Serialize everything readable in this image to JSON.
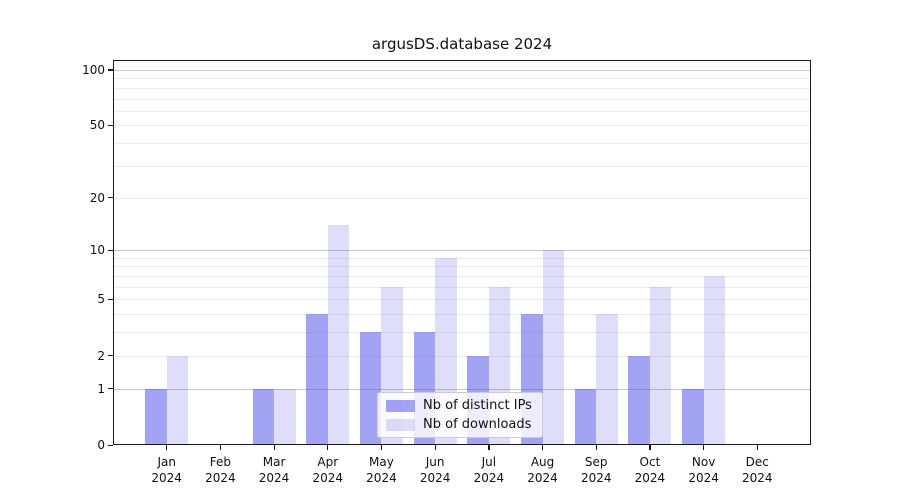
{
  "title": "argusDS.database 2024",
  "chart_data": {
    "type": "bar",
    "title": "argusDS.database 2024",
    "categories": [
      "Jan",
      "Feb",
      "Mar",
      "Apr",
      "May",
      "Jun",
      "Jul",
      "Aug",
      "Sep",
      "Oct",
      "Nov",
      "Dec"
    ],
    "year_label": "2024",
    "series": [
      {
        "name": "Nb of distinct IPs",
        "color": "rgba(88,88,235,0.55)",
        "values": [
          1,
          0,
          1,
          4,
          3,
          3,
          2,
          4,
          1,
          2,
          1,
          0
        ]
      },
      {
        "name": "Nb of downloads",
        "color": "rgba(88,88,235,0.20)",
        "values": [
          2,
          0,
          1,
          14,
          6,
          9,
          6,
          10,
          4,
          6,
          7,
          0
        ]
      }
    ],
    "yscale": "log1p",
    "yticks": [
      0,
      1,
      2,
      5,
      10,
      20,
      50,
      100
    ],
    "ylim": [
      0,
      113
    ],
    "xlabel": "",
    "ylabel": "",
    "grid": {
      "major": [
        1,
        10,
        100
      ],
      "minor": [
        2,
        3,
        4,
        5,
        6,
        7,
        8,
        9,
        20,
        30,
        40,
        50,
        60,
        70,
        80,
        90
      ]
    },
    "legend": {
      "position": "lower center"
    }
  },
  "colors": {
    "major_grid": "#c6c6c6",
    "minor_grid": "#ebebeb",
    "spine": "#1a1a1a",
    "text": "#111111"
  }
}
